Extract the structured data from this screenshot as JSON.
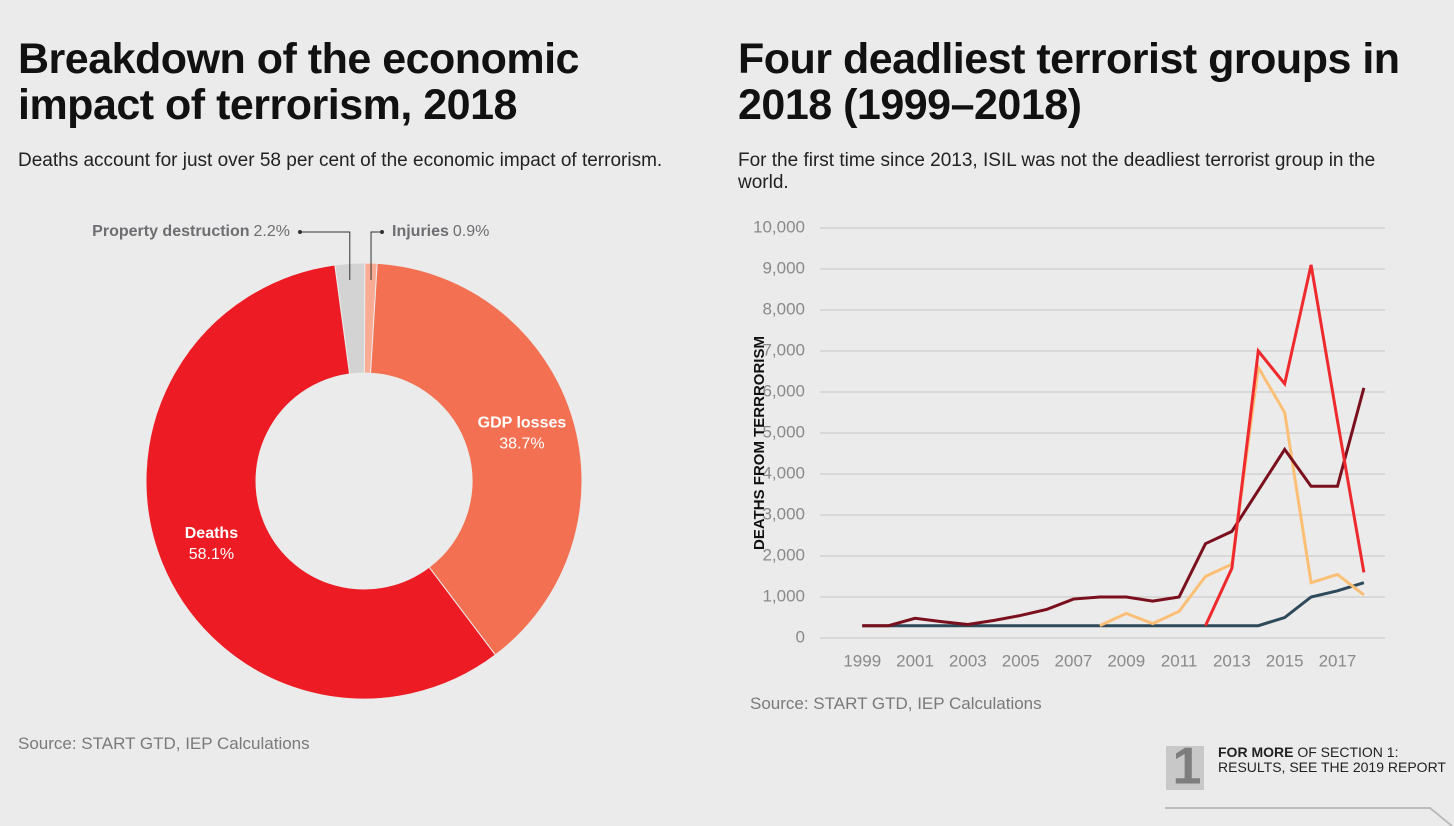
{
  "chart_data": [
    {
      "type": "pie",
      "title": "Breakdown of the economic impact of terrorism, 2018",
      "subtitle": "Deaths account for just over 58 per cent of the economic impact of terrorism.",
      "source": "Source: START GTD, IEP Calculations",
      "categories": [
        "Property destruction",
        "Injuries",
        "GDP losses",
        "Deaths"
      ],
      "values": [
        2.2,
        0.9,
        38.7,
        58.1
      ],
      "value_labels": [
        "2.2%",
        "0.9%",
        "38.7%",
        "58.1%"
      ],
      "colors": [
        "#d3d3d3",
        "#f9ab93",
        "#f37152",
        "#ed1c24"
      ]
    },
    {
      "type": "line",
      "title": "Four deadliest terrorist groups in 2018 (1999–2018)",
      "subtitle": "For the first time since 2013, ISIL was not the deadliest terrorist group in the world.",
      "source": "Source: START GTD, IEP Calculations",
      "y_label": "DEATHS FROM TERRRORISM",
      "x": [
        1999,
        2000,
        2001,
        2002,
        2003,
        2004,
        2005,
        2006,
        2007,
        2008,
        2009,
        2010,
        2011,
        2012,
        2013,
        2014,
        2015,
        2016,
        2017,
        2018
      ],
      "series": [
        {
          "color": "#2e4a5a",
          "values": [
            300,
            300,
            300,
            300,
            300,
            300,
            300,
            300,
            300,
            300,
            300,
            300,
            300,
            300,
            300,
            300,
            500,
            1000,
            1150,
            1350
          ]
        },
        {
          "color": "#fcbf76",
          "values": [
            null,
            null,
            null,
            null,
            null,
            null,
            null,
            null,
            null,
            300,
            600,
            350,
            650,
            1500,
            1800,
            6600,
            5500,
            1350,
            1550,
            1050
          ]
        },
        {
          "color": "#7a0f1e",
          "values": [
            300,
            300,
            480,
            400,
            330,
            430,
            550,
            700,
            950,
            1000,
            1000,
            900,
            1000,
            2300,
            2600,
            3600,
            4600,
            3700,
            3700,
            6100
          ]
        },
        {
          "color": "#ee2a2e",
          "values": [
            null,
            null,
            null,
            null,
            null,
            null,
            null,
            null,
            null,
            null,
            null,
            null,
            null,
            300,
            1700,
            7000,
            6200,
            9100,
            5300,
            1600
          ]
        }
      ],
      "xlim": [
        1997.4,
        2018.8
      ],
      "xticks": [
        1999,
        2001,
        2003,
        2005,
        2007,
        2009,
        2011,
        2013,
        2015,
        2017
      ],
      "ylim": [
        0,
        10000
      ],
      "yticks": [
        0,
        {
          "value": 1000,
          "label": "1,000"
        },
        {
          "value": 2000,
          "label": "2,000"
        },
        {
          "value": 3000,
          "label": "3,000"
        },
        {
          "value": 4000,
          "label": "4,000"
        },
        {
          "value": 5000,
          "label": "5,000"
        },
        {
          "value": 6000,
          "label": "6,000"
        },
        {
          "value": 7000,
          "label": "7,000"
        },
        {
          "value": 8000,
          "label": "8,000"
        },
        {
          "value": 9000,
          "label": "9,000"
        },
        {
          "value": 10000,
          "label": "10,000"
        }
      ],
      "grid": true
    }
  ],
  "footer": {
    "icon": "1",
    "bold": "FOR MORE",
    "text": "OF SECTION 1: RESULTS, SEE THE 2019 REPORT"
  }
}
